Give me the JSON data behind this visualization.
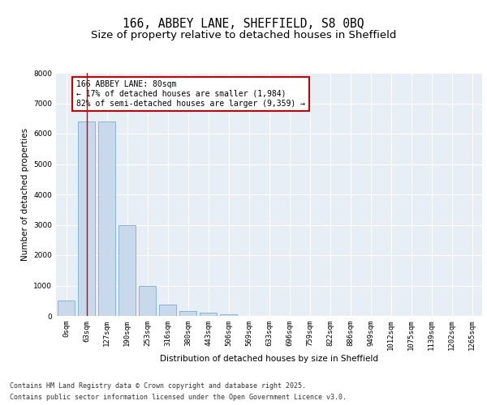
{
  "title_line1": "166, ABBEY LANE, SHEFFIELD, S8 0BQ",
  "title_line2": "Size of property relative to detached houses in Sheffield",
  "xlabel": "Distribution of detached houses by size in Sheffield",
  "ylabel": "Number of detached properties",
  "bar_color": "#c9d9ec",
  "bar_edge_color": "#7aaed0",
  "background_color": "#e8eef5",
  "grid_color": "#ffffff",
  "annotation_box_color": "#cc0000",
  "vline_color": "#cc0000",
  "fig_background": "#ffffff",
  "categories": [
    "0sqm",
    "63sqm",
    "127sqm",
    "190sqm",
    "253sqm",
    "316sqm",
    "380sqm",
    "443sqm",
    "506sqm",
    "569sqm",
    "633sqm",
    "696sqm",
    "759sqm",
    "822sqm",
    "886sqm",
    "949sqm",
    "1012sqm",
    "1075sqm",
    "1139sqm",
    "1202sqm",
    "1265sqm"
  ],
  "values": [
    500,
    6400,
    6400,
    3000,
    1000,
    370,
    150,
    100,
    60,
    0,
    0,
    0,
    0,
    0,
    0,
    0,
    0,
    0,
    0,
    0,
    0
  ],
  "ylim": [
    0,
    8000
  ],
  "yticks": [
    0,
    1000,
    2000,
    3000,
    4000,
    5000,
    6000,
    7000,
    8000
  ],
  "property_bin_index": 1,
  "annotation_text": "166 ABBEY LANE: 80sqm\n← 17% of detached houses are smaller (1,984)\n82% of semi-detached houses are larger (9,359) →",
  "footer_line1": "Contains HM Land Registry data © Crown copyright and database right 2025.",
  "footer_line2": "Contains public sector information licensed under the Open Government Licence v3.0.",
  "title_fontsize": 10.5,
  "subtitle_fontsize": 9.5,
  "axis_label_fontsize": 7.5,
  "tick_fontsize": 6.5,
  "annotation_fontsize": 7,
  "footer_fontsize": 6
}
